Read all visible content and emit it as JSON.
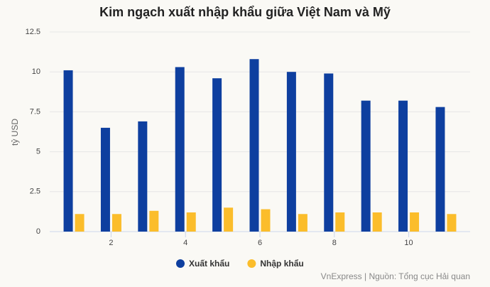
{
  "chart_data": {
    "type": "bar",
    "title": "Kim ngạch xuất nhập khẩu giữa Việt Nam và Mỹ",
    "y_label": "tỷ USD",
    "x": [
      1,
      2,
      3,
      4,
      5,
      6,
      7,
      8,
      9,
      10,
      11
    ],
    "xlim": [
      0.35,
      11.65
    ],
    "xticks": [
      2,
      4,
      6,
      8,
      10
    ],
    "ylim": [
      0,
      12.5
    ],
    "yticks": [
      0,
      2.5,
      5,
      7.5,
      10,
      12.5
    ],
    "grid": true,
    "series": [
      {
        "name": "Xuất khẩu",
        "color": "#0e3f9f",
        "values": [
          10.1,
          6.5,
          6.9,
          10.3,
          9.6,
          10.8,
          10.0,
          9.9,
          8.2,
          8.2,
          7.8
        ]
      },
      {
        "name": "Nhập khẩu",
        "color": "#fbbd2b",
        "values": [
          1.1,
          1.1,
          1.3,
          1.2,
          1.5,
          1.4,
          1.1,
          1.2,
          1.2,
          1.2,
          1.1
        ]
      }
    ],
    "source": "VnExpress | Nguồn: Tổng cục Hải quan"
  }
}
